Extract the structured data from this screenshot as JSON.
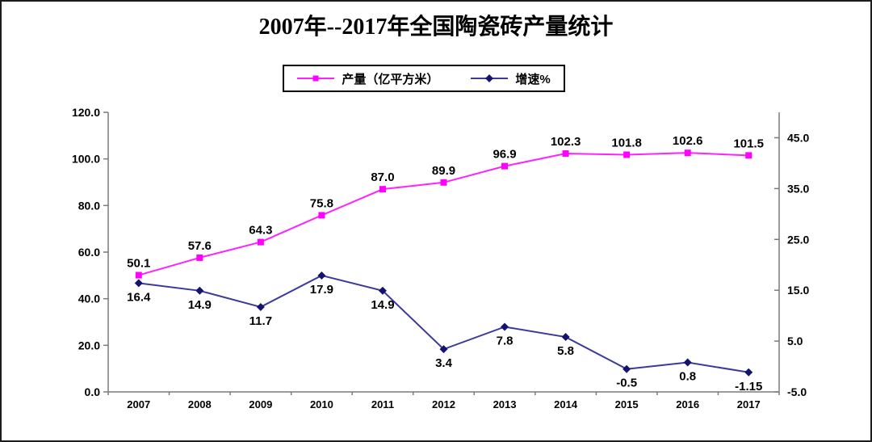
{
  "chart_data": {
    "type": "line",
    "title": "2007年--2017年全国陶瓷砖产量统计",
    "categories": [
      "2007",
      "2008",
      "2009",
      "2010",
      "2011",
      "2012",
      "2013",
      "2014",
      "2015",
      "2016",
      "2017"
    ],
    "series": [
      {
        "name": "产量（亿平方米）",
        "axis": "left",
        "marker": "square",
        "line_color": "#ff22ff",
        "marker_color": "#ff00ff",
        "label_position": "above",
        "values": [
          50.1,
          57.6,
          64.3,
          75.8,
          87.0,
          89.9,
          96.9,
          102.3,
          101.8,
          102.6,
          101.5
        ],
        "labels": [
          "50.1",
          "57.6",
          "64.3",
          "75.8",
          "87.0",
          "89.9",
          "96.9",
          "102.3",
          "101.8",
          "102.6",
          "101.5"
        ]
      },
      {
        "name": "增速%",
        "axis": "right",
        "marker": "diamond",
        "line_color": "#3a3a9c",
        "marker_color": "#14146e",
        "label_position": "below",
        "values": [
          16.4,
          14.9,
          11.7,
          17.9,
          14.9,
          3.4,
          7.8,
          5.8,
          -0.5,
          0.8,
          -1.15
        ],
        "labels": [
          "16.4",
          "14.9",
          "11.7",
          "17.9",
          "14.9",
          "3.4",
          "7.8",
          "5.8",
          "-0.5",
          "0.8",
          "-1.15"
        ]
      }
    ],
    "left_axis": {
      "min": 0,
      "max": 120,
      "tick_values": [
        0,
        20,
        40,
        60,
        80,
        100,
        120
      ],
      "tick_labels": [
        "0.0",
        "20.0",
        "40.0",
        "60.0",
        "80.0",
        "100.0",
        "120.0"
      ]
    },
    "right_axis": {
      "min": -5,
      "max": 50,
      "tick_values": [
        -5,
        5,
        15,
        25,
        35,
        45
      ],
      "tick_labels": [
        "-5.0",
        "5.0",
        "15.0",
        "25.0",
        "35.0",
        "45.0"
      ]
    },
    "legend_position": "top-center",
    "grid": "off",
    "axis_color": "#7a7a7a",
    "text_color": "#000000",
    "background": "#ffffff"
  }
}
